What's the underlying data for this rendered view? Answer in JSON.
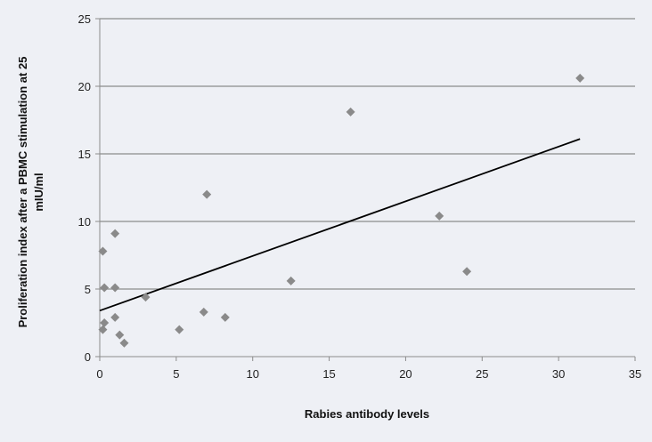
{
  "chart_data": {
    "type": "scatter",
    "title": "",
    "xlabel": "Rabies antibody levels",
    "ylabel_lines": [
      "Proliferation index after a PBMC stimulation at 25",
      "mIU/ml"
    ],
    "xlim": [
      0,
      35
    ],
    "ylim": [
      0,
      25
    ],
    "x_ticks": [
      0,
      5,
      10,
      15,
      20,
      25,
      30,
      35
    ],
    "y_ticks": [
      0,
      5,
      10,
      15,
      20,
      25
    ],
    "grid": "horizontal",
    "marker": "diamond",
    "colors": {
      "points": "#8a8a8a",
      "trendline": "#000000",
      "gridlines": "#8c8c8c",
      "background": "#eef0f5"
    },
    "points": [
      {
        "x": 0.2,
        "y": 7.8
      },
      {
        "x": 0.3,
        "y": 5.1
      },
      {
        "x": 0.3,
        "y": 2.5
      },
      {
        "x": 0.2,
        "y": 2.0
      },
      {
        "x": 1.0,
        "y": 9.1
      },
      {
        "x": 1.0,
        "y": 5.1
      },
      {
        "x": 1.0,
        "y": 2.9
      },
      {
        "x": 1.3,
        "y": 1.6
      },
      {
        "x": 1.6,
        "y": 1.0
      },
      {
        "x": 3.0,
        "y": 4.4
      },
      {
        "x": 5.2,
        "y": 2.0
      },
      {
        "x": 6.8,
        "y": 3.3
      },
      {
        "x": 7.0,
        "y": 12.0
      },
      {
        "x": 8.2,
        "y": 2.9
      },
      {
        "x": 12.5,
        "y": 5.6
      },
      {
        "x": 16.4,
        "y": 18.1
      },
      {
        "x": 22.2,
        "y": 10.4
      },
      {
        "x": 24.0,
        "y": 6.3
      },
      {
        "x": 31.4,
        "y": 20.6
      }
    ],
    "trendline": {
      "x": [
        0,
        31.4
      ],
      "y": [
        3.4,
        16.1
      ]
    }
  }
}
